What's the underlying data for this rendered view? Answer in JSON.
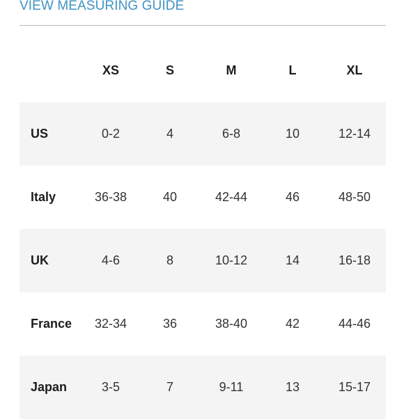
{
  "header": {
    "guide_link": "VIEW MEASURING GUIDE"
  },
  "table": {
    "columns": [
      "",
      "XS",
      "S",
      "M",
      "L",
      "XL"
    ],
    "rows": [
      {
        "region": "US",
        "values": [
          "0-2",
          "4",
          "6-8",
          "10",
          "12-14"
        ]
      },
      {
        "region": "Italy",
        "values": [
          "36-38",
          "40",
          "42-44",
          "46",
          "48-50"
        ]
      },
      {
        "region": "UK",
        "values": [
          "4-6",
          "8",
          "10-12",
          "14",
          "16-18"
        ]
      },
      {
        "region": "France",
        "values": [
          "32-34",
          "36",
          "38-40",
          "42",
          "44-46"
        ]
      },
      {
        "region": "Japan",
        "values": [
          "3-5",
          "7",
          "9-11",
          "13",
          "15-17"
        ]
      }
    ]
  },
  "colors": {
    "link": "#3f93c4",
    "band": "#f3f3f3",
    "divider": "#b9b9b9"
  }
}
